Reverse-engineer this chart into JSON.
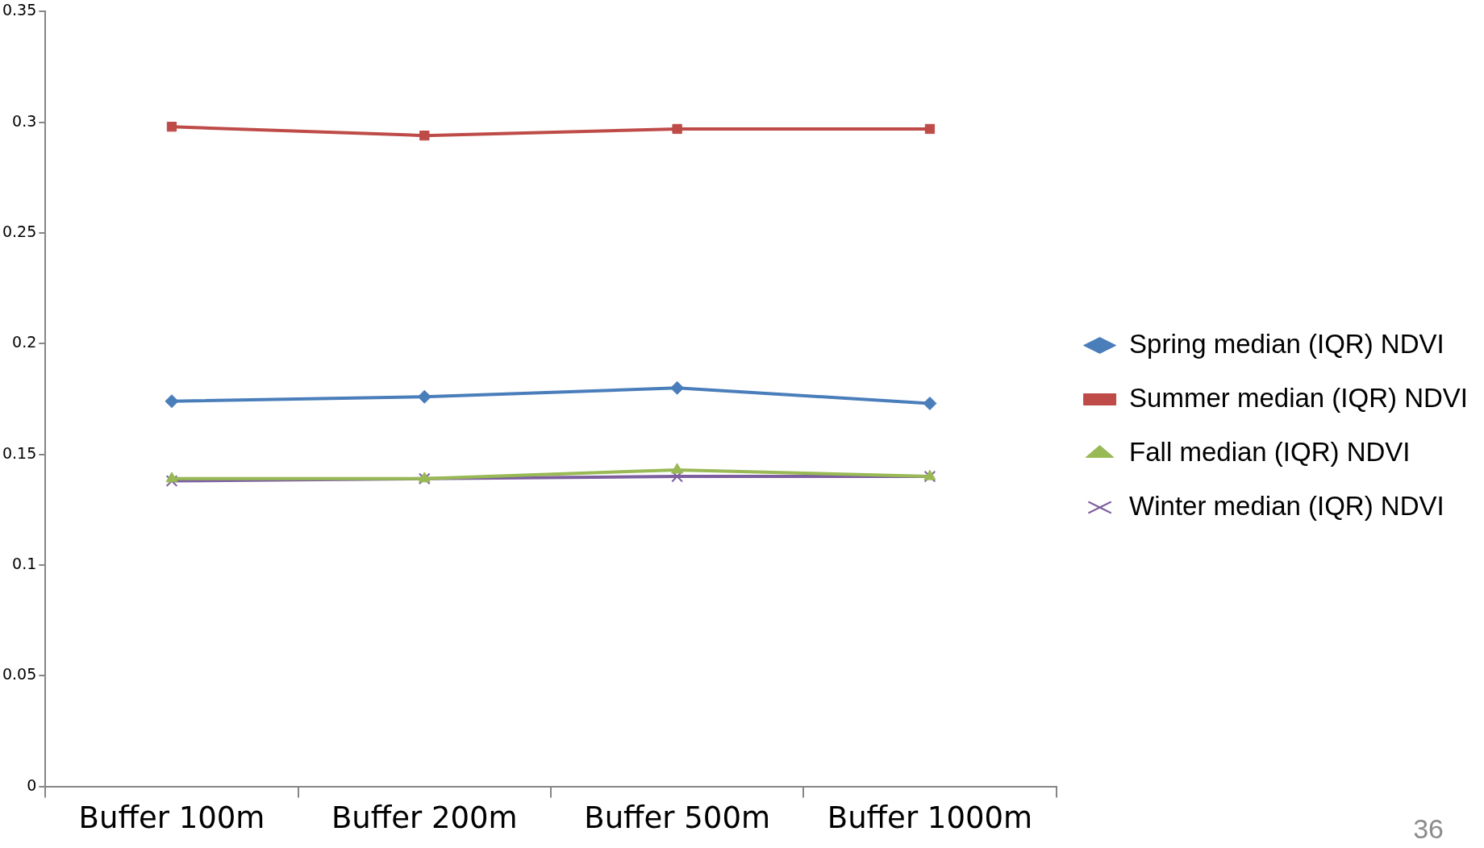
{
  "chart_data": {
    "type": "line",
    "categories": [
      "Buffer 100m",
      "Buffer 200m",
      "Buffer 500m",
      "Buffer 1000m"
    ],
    "series": [
      {
        "name": "Spring median (IQR) NDVI",
        "color": "#4a7ebb",
        "marker": "diamond",
        "values": [
          0.174,
          0.176,
          0.18,
          0.173
        ]
      },
      {
        "name": "Summer median (IQR) NDVI",
        "color": "#be4b48",
        "marker": "square",
        "values": [
          0.298,
          0.294,
          0.297,
          0.297
        ]
      },
      {
        "name": "Fall median (IQR) NDVI",
        "color": "#98b954",
        "marker": "triangle",
        "values": [
          0.139,
          0.139,
          0.143,
          0.14
        ]
      },
      {
        "name": "Winter median (IQR) NDVI",
        "color": "#7d5fa0",
        "marker": "cross",
        "values": [
          0.138,
          0.139,
          0.14,
          0.14
        ]
      }
    ],
    "ylim": [
      0,
      0.35
    ],
    "yticks": [
      0,
      0.05,
      0.1,
      0.15,
      0.2,
      0.25,
      0.3,
      0.35
    ],
    "grid": false,
    "legend": "right",
    "line_style": "solid",
    "annotations": [
      "36"
    ]
  }
}
